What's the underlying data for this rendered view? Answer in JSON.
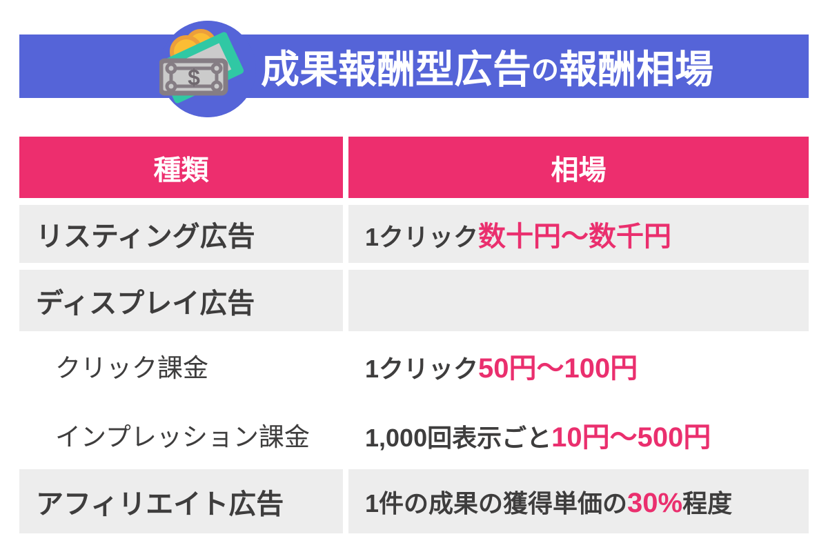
{
  "banner": {
    "title_seg1": "成果報酬型広告",
    "title_seg2": "の",
    "title_seg3": "報酬相場",
    "icon": "money-bills-coins-icon"
  },
  "colors": {
    "banner_blue": "#5564D8",
    "header_pink": "#ED2E6E",
    "accent_pink": "#EA2F6E",
    "row_gray": "#EDEDED",
    "text_dark": "#3E3D3D",
    "coin_yellow": "#FBBD35",
    "coin_orange": "#EC9F3B",
    "note_teal": "#30C8A4",
    "note_gray": "#CBCBCB",
    "note_border_gray": "#857D84"
  },
  "table": {
    "columns": [
      {
        "label": "種類"
      },
      {
        "label": "相場"
      }
    ],
    "rows": [
      {
        "label": "リスティング広告",
        "indent": false,
        "shaded": true,
        "value_parts": [
          {
            "text": "1クリック",
            "accent": false
          },
          {
            "text": "数十円〜数千円",
            "accent": true
          }
        ]
      },
      {
        "label": "ディスプレイ広告",
        "indent": false,
        "shaded": true,
        "value_parts": []
      },
      {
        "label": "クリック課金",
        "indent": true,
        "shaded": false,
        "value_parts": [
          {
            "text": "1クリック",
            "accent": false
          },
          {
            "text": "50円〜100円",
            "accent": true
          }
        ]
      },
      {
        "label": "インプレッション課金",
        "indent": true,
        "shaded": false,
        "value_parts": [
          {
            "text": "1,000回表示ごと",
            "accent": false
          },
          {
            "text": "10円〜500円",
            "accent": true
          }
        ]
      },
      {
        "label": "アフィリエイト広告",
        "indent": false,
        "shaded": true,
        "value_parts": [
          {
            "text": "1件の成果の獲得単価の",
            "accent": false
          },
          {
            "text": "30%",
            "accent": true
          },
          {
            "text": "程度",
            "accent": false
          }
        ]
      }
    ]
  },
  "chart_data": {
    "type": "table",
    "title": "成果報酬型広告の報酬相場",
    "columns": [
      "種類",
      "相場"
    ],
    "rows": [
      [
        "リスティング広告",
        "1クリック数十円〜数千円"
      ],
      [
        "ディスプレイ広告",
        ""
      ],
      [
        "クリック課金",
        "1クリック50円〜100円"
      ],
      [
        "インプレッション課金",
        "1,000回表示ごと10円〜500円"
      ],
      [
        "アフィリエイト広告",
        "1件の成果の獲得単価の30%程度"
      ]
    ]
  }
}
